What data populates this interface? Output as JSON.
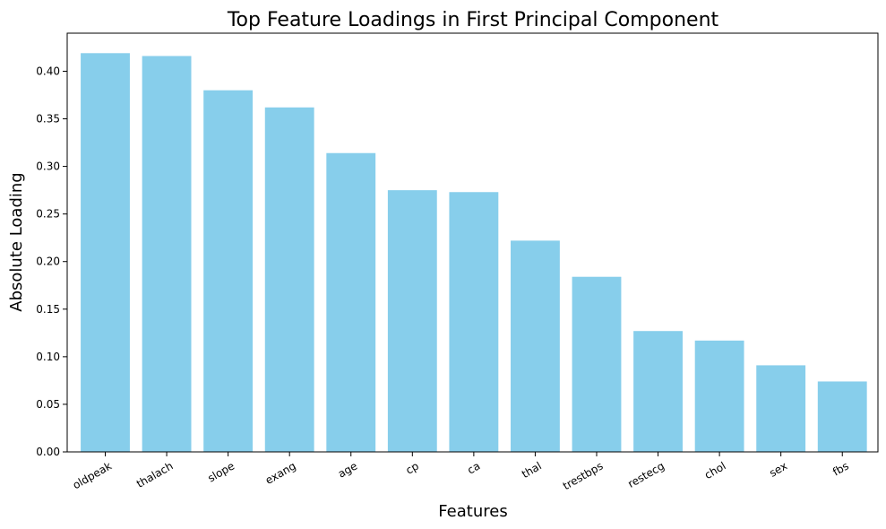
{
  "chart_data": {
    "type": "bar",
    "title": "Top Feature Loadings in First Principal Component",
    "xlabel": "Features",
    "ylabel": "Absolute Loading",
    "categories": [
      "oldpeak",
      "thalach",
      "slope",
      "exang",
      "age",
      "cp",
      "ca",
      "thal",
      "trestbps",
      "restecg",
      "chol",
      "sex",
      "fbs"
    ],
    "values": [
      0.419,
      0.416,
      0.38,
      0.362,
      0.314,
      0.275,
      0.273,
      0.222,
      0.184,
      0.127,
      0.117,
      0.091,
      0.074
    ],
    "ylim": [
      0,
      0.44
    ],
    "yticks": [
      "0.00",
      "0.05",
      "0.10",
      "0.15",
      "0.20",
      "0.25",
      "0.30",
      "0.35",
      "0.40"
    ],
    "bar_color": "#87CEEB",
    "grid": false,
    "legend": false
  }
}
